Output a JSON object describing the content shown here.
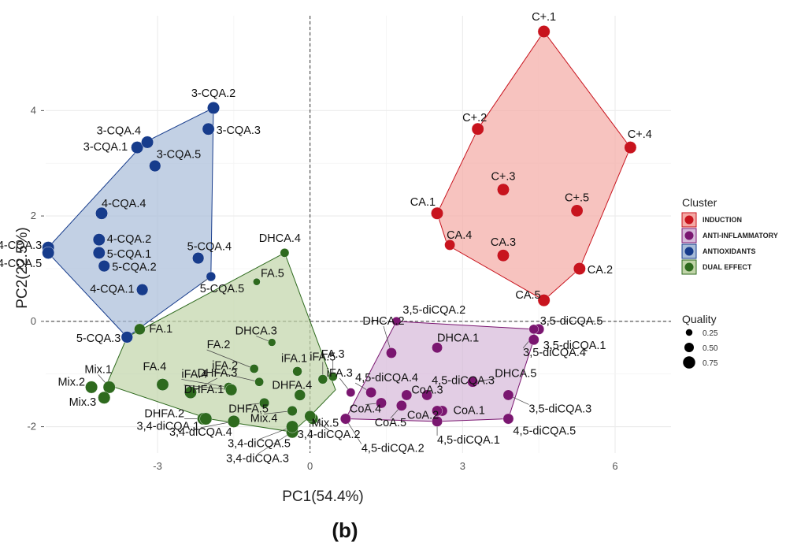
{
  "chart_data": {
    "type": "scatter",
    "xlabel": "PC1(54.4%)",
    "ylabel": "PC2(22.5%)",
    "caption": "(b)",
    "xlim": [
      -5.2,
      7.1
    ],
    "ylim": [
      -2.5,
      5.8
    ],
    "x_ticks": [
      -3,
      0,
      3,
      6
    ],
    "x_tick_labels": [
      "-3",
      "0",
      "3",
      "6"
    ],
    "y_ticks": [
      -2,
      0,
      2,
      4
    ],
    "y_tick_labels": [
      "-2",
      "0",
      "2",
      "4"
    ],
    "grid": true,
    "reference_lines": {
      "x": 0,
      "y": 0,
      "style": "dashed"
    },
    "legend": {
      "cluster_title": "Cluster",
      "quality_title": "Quality",
      "placement": "right",
      "quality_levels": [
        0.25,
        0.5,
        0.75
      ]
    },
    "clusters": [
      {
        "key": "ind",
        "name": "INDUCTION",
        "color": "#c8141e",
        "fill": "#f4a9a4"
      },
      {
        "key": "ai",
        "name": "ANTI-INFLAMMATORY",
        "color": "#7a1670",
        "fill": "#d5b8d9"
      },
      {
        "key": "ao",
        "name": "ANTIOXIDANTS",
        "color": "#173c8c",
        "fill": "#a8bcd8"
      },
      {
        "key": "de",
        "name": "DUAL EFFECT",
        "color": "#2e6a1e",
        "fill": "#c0d4a8"
      }
    ],
    "hulls": {
      "ind": [
        [
          4.6,
          5.5
        ],
        [
          6.3,
          3.3
        ],
        [
          5.3,
          1.0
        ],
        [
          4.6,
          0.4
        ],
        [
          2.7,
          1.45
        ],
        [
          2.5,
          2.05
        ],
        [
          3.3,
          3.65
        ]
      ],
      "ai": [
        [
          1.7,
          0.0
        ],
        [
          4.4,
          -0.15
        ],
        [
          4.4,
          -0.35
        ],
        [
          3.9,
          -1.85
        ],
        [
          2.5,
          -1.9
        ],
        [
          0.7,
          -1.85
        ]
      ],
      "ao": [
        [
          -1.9,
          4.05
        ],
        [
          -1.95,
          0.85
        ],
        [
          -3.6,
          -0.3
        ],
        [
          -5.2,
          1.35
        ],
        [
          -3.25,
          3.4
        ]
      ],
      "de": [
        [
          -0.5,
          1.3
        ],
        [
          0.5,
          -1.3
        ],
        [
          0.0,
          -1.8
        ],
        [
          -0.35,
          -2.1
        ],
        [
          -2.0,
          -1.85
        ],
        [
          -4.0,
          -1.2
        ],
        [
          -3.6,
          -0.3
        ]
      ]
    },
    "points": [
      {
        "label": "C+.1",
        "x": 4.6,
        "y": 5.5,
        "q": 0.75,
        "c": "ind"
      },
      {
        "label": "C+.2",
        "x": 3.3,
        "y": 3.65,
        "q": 0.75,
        "c": "ind"
      },
      {
        "label": "C+.3",
        "x": 3.8,
        "y": 2.5,
        "q": 0.75,
        "c": "ind"
      },
      {
        "label": "C+.4",
        "x": 6.3,
        "y": 3.3,
        "q": 0.75,
        "c": "ind"
      },
      {
        "label": "C+.5",
        "x": 5.25,
        "y": 2.1,
        "q": 0.75,
        "c": "ind"
      },
      {
        "label": "CA.1",
        "x": 2.5,
        "y": 2.05,
        "q": 0.75,
        "c": "ind"
      },
      {
        "label": "CA.2",
        "x": 5.3,
        "y": 1.0,
        "q": 0.75,
        "c": "ind"
      },
      {
        "label": "CA.3",
        "x": 3.8,
        "y": 1.25,
        "q": 0.75,
        "c": "ind"
      },
      {
        "label": "CA.4",
        "x": 2.75,
        "y": 1.45,
        "q": 0.6,
        "c": "ind"
      },
      {
        "label": "CA.5",
        "x": 4.6,
        "y": 0.4,
        "q": 0.75,
        "c": "ind"
      },
      {
        "label": "3-CQA.1",
        "x": -3.4,
        "y": 3.3,
        "q": 0.75,
        "c": "ao"
      },
      {
        "label": "3-CQA.2",
        "x": -1.9,
        "y": 4.05,
        "q": 0.75,
        "c": "ao"
      },
      {
        "label": "3-CQA.3",
        "x": -2.0,
        "y": 3.65,
        "q": 0.75,
        "c": "ao"
      },
      {
        "label": "3-CQA.4",
        "x": -3.2,
        "y": 3.4,
        "q": 0.75,
        "c": "ao"
      },
      {
        "label": "3-CQA.5",
        "x": -3.05,
        "y": 2.95,
        "q": 0.7,
        "c": "ao"
      },
      {
        "label": "4-CQA.1",
        "x": -3.3,
        "y": 0.6,
        "q": 0.7,
        "c": "ao"
      },
      {
        "label": "4-CQA.2",
        "x": -4.15,
        "y": 1.55,
        "q": 0.75,
        "c": "ao"
      },
      {
        "label": "4-CQA.3",
        "x": -5.15,
        "y": 1.4,
        "q": 0.75,
        "c": "ao"
      },
      {
        "label": "4-CQA.4",
        "x": -4.1,
        "y": 2.05,
        "q": 0.75,
        "c": "ao"
      },
      {
        "label": "4-CQA.5",
        "x": -5.15,
        "y": 1.3,
        "q": 0.75,
        "c": "ao"
      },
      {
        "label": "5-CQA.1",
        "x": -4.15,
        "y": 1.3,
        "q": 0.75,
        "c": "ao"
      },
      {
        "label": "5-CQA.2",
        "x": -4.05,
        "y": 1.05,
        "q": 0.7,
        "c": "ao"
      },
      {
        "label": "5-CQA.3",
        "x": -3.6,
        "y": -0.3,
        "q": 0.7,
        "c": "ao"
      },
      {
        "label": "5-CQA.4",
        "x": -2.2,
        "y": 1.2,
        "q": 0.7,
        "c": "ao"
      },
      {
        "label": "5-CQA.5",
        "x": -1.95,
        "y": 0.85,
        "q": 0.5,
        "c": "ao"
      },
      {
        "label": "3,5-diCQA.1",
        "x": 4.4,
        "y": -0.35,
        "q": 0.6,
        "c": "ai"
      },
      {
        "label": "3,5-diCQA.2",
        "x": 1.7,
        "y": 0.0,
        "q": 0.45,
        "c": "ai"
      },
      {
        "label": "3,5-diCQA.3",
        "x": 3.9,
        "y": -1.4,
        "q": 0.6,
        "c": "ai"
      },
      {
        "label": "3,5-diCQA.4",
        "x": 4.5,
        "y": -0.15,
        "q": 0.6,
        "c": "ai"
      },
      {
        "label": "3,5-diCQA.5",
        "x": 4.4,
        "y": -0.15,
        "q": 0.5,
        "c": "ai"
      },
      {
        "label": "4,5-diCQA.1",
        "x": 2.5,
        "y": -1.9,
        "q": 0.6,
        "c": "ai"
      },
      {
        "label": "4,5-diCQA.2",
        "x": 0.7,
        "y": -1.85,
        "q": 0.6,
        "c": "ai"
      },
      {
        "label": "4,5-diCQA.3",
        "x": 2.3,
        "y": -1.4,
        "q": 0.6,
        "c": "ai"
      },
      {
        "label": "4,5-diCQA.4",
        "x": 1.2,
        "y": -1.35,
        "q": 0.6,
        "c": "ai"
      },
      {
        "label": "4,5-diCQA.5",
        "x": 3.9,
        "y": -1.85,
        "q": 0.6,
        "c": "ai"
      },
      {
        "label": "DHCA.1",
        "x": 2.5,
        "y": -0.5,
        "q": 0.6,
        "c": "ai"
      },
      {
        "label": "DHCA.2",
        "x": 1.6,
        "y": -0.6,
        "q": 0.6,
        "c": "ai"
      },
      {
        "label": "DHCA.5",
        "x": 3.2,
        "y": -1.15,
        "q": 0.6,
        "c": "ai"
      },
      {
        "label": "CoA.1",
        "x": 2.6,
        "y": -1.7,
        "q": 0.6,
        "c": "ai"
      },
      {
        "label": "CoA.2",
        "x": 2.5,
        "y": -1.7,
        "q": 0.6,
        "c": "ai"
      },
      {
        "label": "CoA.3",
        "x": 1.9,
        "y": -1.4,
        "q": 0.6,
        "c": "ai"
      },
      {
        "label": "CoA.4",
        "x": 1.4,
        "y": -1.55,
        "q": 0.6,
        "c": "ai"
      },
      {
        "label": "CoA.5",
        "x": 1.8,
        "y": -1.6,
        "q": 0.6,
        "c": "ai"
      },
      {
        "label": "iFA.3",
        "x": 0.8,
        "y": -1.35,
        "q": 0.45,
        "c": "ai"
      },
      {
        "label": "DHCA.4",
        "x": -0.5,
        "y": 1.3,
        "q": 0.45,
        "c": "de"
      },
      {
        "label": "DHCA.3",
        "x": -0.75,
        "y": -0.4,
        "q": 0.35,
        "c": "de"
      },
      {
        "label": "FA.1",
        "x": -3.35,
        "y": -0.15,
        "q": 0.65,
        "c": "de"
      },
      {
        "label": "FA.2",
        "x": -1.1,
        "y": -0.9,
        "q": 0.45,
        "c": "de"
      },
      {
        "label": "FA.3",
        "x": 0.45,
        "y": -1.05,
        "q": 0.45,
        "c": "de"
      },
      {
        "label": "FA.4",
        "x": -2.9,
        "y": -1.2,
        "q": 0.75,
        "c": "de"
      },
      {
        "label": "FA.5",
        "x": -1.05,
        "y": 0.75,
        "q": 0.3,
        "c": "de"
      },
      {
        "label": "iFA.1",
        "x": -0.25,
        "y": -0.95,
        "q": 0.5,
        "c": "de"
      },
      {
        "label": "iFA.2",
        "x": -1.0,
        "y": -1.15,
        "q": 0.45,
        "c": "de"
      },
      {
        "label": "iFA.4",
        "x": -1.6,
        "y": -1.25,
        "q": 0.5,
        "c": "de"
      },
      {
        "label": "iFA.5",
        "x": 0.25,
        "y": -1.1,
        "q": 0.5,
        "c": "de"
      },
      {
        "label": "DHFA.1",
        "x": -1.55,
        "y": -1.3,
        "q": 0.7,
        "c": "de"
      },
      {
        "label": "DHFA.2",
        "x": -2.1,
        "y": -1.85,
        "q": 0.75,
        "c": "de"
      },
      {
        "label": "DHFA.3",
        "x": -2.35,
        "y": -1.35,
        "q": 0.75,
        "c": "de"
      },
      {
        "label": "DHFA.4",
        "x": -0.2,
        "y": -1.4,
        "q": 0.65,
        "c": "de"
      },
      {
        "label": "DHFA.5",
        "x": -0.9,
        "y": -1.55,
        "q": 0.55,
        "c": "de"
      },
      {
        "label": "Mix.1",
        "x": -3.95,
        "y": -1.25,
        "q": 0.75,
        "c": "de"
      },
      {
        "label": "Mix.2",
        "x": -4.3,
        "y": -1.25,
        "q": 0.75,
        "c": "de"
      },
      {
        "label": "Mix.3",
        "x": -4.05,
        "y": -1.45,
        "q": 0.75,
        "c": "de"
      },
      {
        "label": "Mix.4",
        "x": -0.35,
        "y": -1.7,
        "q": 0.55,
        "c": "de"
      },
      {
        "label": "Mix.5",
        "x": 0.05,
        "y": -1.85,
        "q": 0.65,
        "c": "de"
      },
      {
        "label": "3,4-diCQA.1",
        "x": -2.05,
        "y": -1.85,
        "q": 0.75,
        "c": "de"
      },
      {
        "label": "3,4-diCQA.2",
        "x": 0.0,
        "y": -1.8,
        "q": 0.65,
        "c": "de"
      },
      {
        "label": "3,4-diCQA.3",
        "x": -0.35,
        "y": -2.1,
        "q": 0.75,
        "c": "de"
      },
      {
        "label": "3,4-diCQA.4",
        "x": -1.5,
        "y": -1.9,
        "q": 0.75,
        "c": "de"
      },
      {
        "label": "3,4-diCQA.5",
        "x": -0.35,
        "y": -2.0,
        "q": 0.75,
        "c": "de"
      }
    ]
  }
}
